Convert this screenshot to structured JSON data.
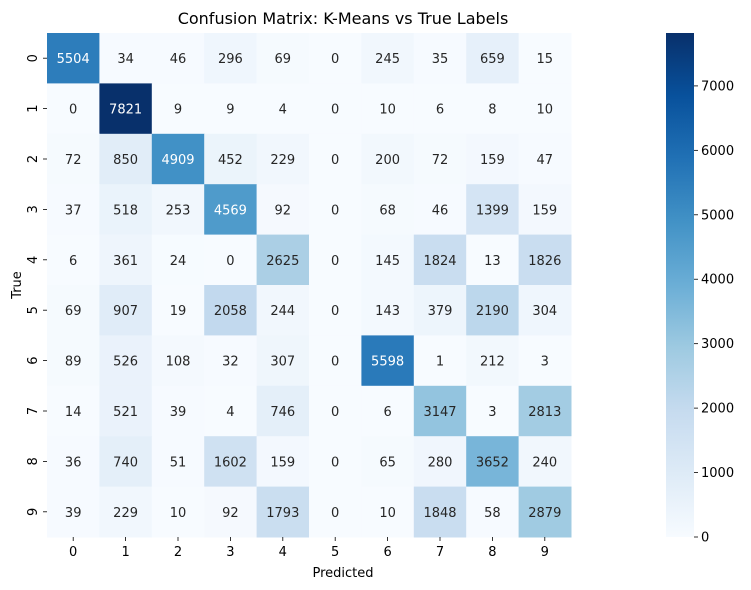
{
  "chart_data": {
    "type": "heatmap",
    "title": "Confusion Matrix: K-Means vs True Labels",
    "xlabel": "Predicted",
    "ylabel": "True",
    "x_categories": [
      "0",
      "1",
      "2",
      "3",
      "4",
      "5",
      "6",
      "7",
      "8",
      "9"
    ],
    "y_categories": [
      "0",
      "1",
      "2",
      "3",
      "4",
      "5",
      "6",
      "7",
      "8",
      "9"
    ],
    "values": [
      [
        5504,
        34,
        46,
        296,
        69,
        0,
        245,
        35,
        659,
        15
      ],
      [
        0,
        7821,
        9,
        9,
        4,
        0,
        10,
        6,
        8,
        10
      ],
      [
        72,
        850,
        4909,
        452,
        229,
        0,
        200,
        72,
        159,
        47
      ],
      [
        37,
        518,
        253,
        4569,
        92,
        0,
        68,
        46,
        1399,
        159
      ],
      [
        6,
        361,
        24,
        0,
        2625,
        0,
        145,
        1824,
        13,
        1826
      ],
      [
        69,
        907,
        19,
        2058,
        244,
        0,
        143,
        379,
        2190,
        304
      ],
      [
        89,
        526,
        108,
        32,
        307,
        0,
        5598,
        1,
        212,
        3
      ],
      [
        14,
        521,
        39,
        4,
        746,
        0,
        6,
        3147,
        3,
        2813
      ],
      [
        36,
        740,
        51,
        1602,
        159,
        0,
        65,
        280,
        3652,
        240
      ],
      [
        39,
        229,
        10,
        92,
        1793,
        0,
        10,
        1848,
        58,
        2879
      ]
    ],
    "colormap": "Blues",
    "vmin": 0,
    "vmax": 7821,
    "colorbar_ticks": [
      0,
      1000,
      2000,
      3000,
      4000,
      5000,
      6000,
      7000
    ]
  }
}
